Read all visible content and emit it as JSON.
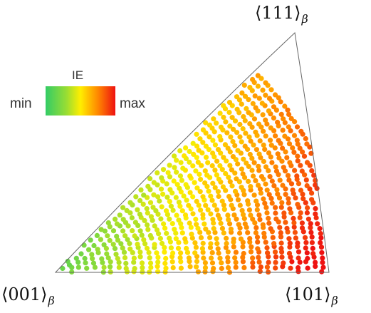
{
  "legend": {
    "title": "IE",
    "min_label": "min",
    "max_label": "max",
    "gradient_colors": [
      "#33cc66",
      "#99dd33",
      "#ffee00",
      "#ff8800",
      "#ee1111"
    ]
  },
  "corners": {
    "top": {
      "main": "⟨111⟩",
      "sub": "β"
    },
    "bottom_left": {
      "main": "⟨001⟩",
      "sub": "β"
    },
    "bottom_right": {
      "main": "⟨101⟩",
      "sub": "β"
    }
  },
  "colors": {
    "outline": "#666666",
    "low": "#33cc66",
    "mid": "#ffee00",
    "high": "#ee1111"
  }
}
